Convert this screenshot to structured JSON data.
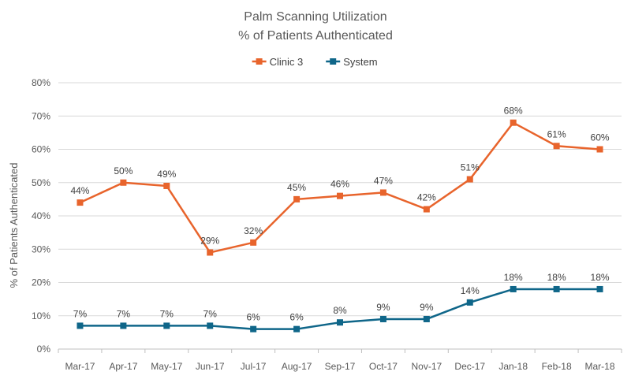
{
  "chart_data": {
    "type": "line",
    "title": "Palm Scanning Utilization",
    "subtitle": "% of Patients Authenticated",
    "xlabel": "",
    "ylabel": "% of Patients Authenticated",
    "ylim": [
      0,
      80
    ],
    "y_ticks": [
      0,
      10,
      20,
      30,
      40,
      50,
      60,
      70,
      80
    ],
    "y_tick_suffix": "%",
    "grid": true,
    "legend_position": "top-center",
    "categories": [
      "Mar-17",
      "Apr-17",
      "May-17",
      "Jun-17",
      "Jul-17",
      "Aug-17",
      "Sep-17",
      "Oct-17",
      "Nov-17",
      "Dec-17",
      "Jan-18",
      "Feb-18",
      "Mar-18"
    ],
    "series": [
      {
        "name": "Clinic 3",
        "color": "#E8642C",
        "marker": "square",
        "values": [
          44,
          50,
          49,
          29,
          32,
          45,
          46,
          47,
          42,
          51,
          68,
          61,
          60
        ],
        "labels": [
          "44%",
          "50%",
          "49%",
          "29%",
          "32%",
          "45%",
          "46%",
          "47%",
          "42%",
          "51%",
          "68%",
          "61%",
          "60%"
        ]
      },
      {
        "name": "System",
        "color": "#0F6689",
        "marker": "square",
        "values": [
          7,
          7,
          7,
          7,
          6,
          6,
          8,
          9,
          9,
          14,
          18,
          18,
          18
        ],
        "labels": [
          "7%",
          "7%",
          "7%",
          "7%",
          "6%",
          "6%",
          "8%",
          "9%",
          "9%",
          "14%",
          "18%",
          "18%",
          "18%"
        ]
      }
    ]
  }
}
